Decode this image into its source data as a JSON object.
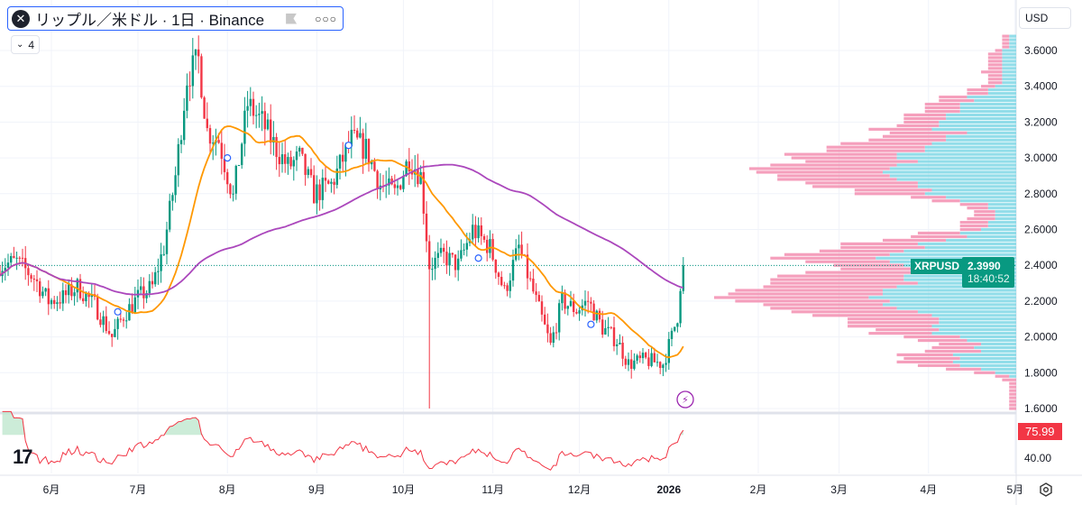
{
  "header": {
    "symbol_title": "リップル／米ドル · 1日 · Binance",
    "symbol_icon": "xrp-logo-icon",
    "more_icon": "ellipsis-icon",
    "indicators_collapse_count": "4"
  },
  "currency_selector": "USD",
  "price_axis": {
    "ticks": [
      "3.6000",
      "3.4000",
      "3.2000",
      "3.0000",
      "2.8000",
      "2.6000",
      "2.4000",
      "2.2000",
      "2.0000",
      "1.8000",
      "1.6000"
    ],
    "tick_values": [
      3.6,
      3.4,
      3.2,
      3.0,
      2.8,
      2.6,
      2.4,
      2.2,
      2.0,
      1.8,
      1.6
    ]
  },
  "last_price": {
    "symbol": "XRPUSD",
    "price": "2.3990",
    "countdown": "18:40:52",
    "value": 2.399
  },
  "rsi_pane": {
    "value_label": "75.99",
    "value": 75.99,
    "tick": "40.00",
    "tick_value": 40
  },
  "time_axis": [
    "6月",
    "7月",
    "8月",
    "9月",
    "10月",
    "11月",
    "12月",
    "2026",
    "2月",
    "3月",
    "4月",
    "5月"
  ],
  "colors": {
    "up": "#089981",
    "down": "#f23645",
    "ma_fast": "#ff9800",
    "ma_slow": "#ab47bc",
    "vp_up": "#80d8e6",
    "vp_down": "#f48fb1",
    "rsi": "#f23645",
    "accent": "#2962ff"
  },
  "chart_data": {
    "type": "candlestick",
    "symbol": "XRPUSD",
    "interval": "1D",
    "ylim": [
      1.6,
      3.66
    ],
    "close_path": [
      [
        "2025-05-14",
        2.4
      ],
      [
        "2025-05-20",
        2.42
      ],
      [
        "2025-05-26",
        2.33
      ],
      [
        "2025-05-31",
        2.2
      ],
      [
        "2025-06-05",
        2.22
      ],
      [
        "2025-06-10",
        2.28
      ],
      [
        "2025-06-16",
        2.18
      ],
      [
        "2025-06-22",
        2.0
      ],
      [
        "2025-06-26",
        2.12
      ],
      [
        "2025-07-01",
        2.22
      ],
      [
        "2025-07-06",
        2.28
      ],
      [
        "2025-07-10",
        2.5
      ],
      [
        "2025-07-14",
        2.9
      ],
      [
        "2025-07-18",
        3.45
      ],
      [
        "2025-07-22",
        3.55
      ],
      [
        "2025-07-25",
        3.15
      ],
      [
        "2025-07-29",
        3.1
      ],
      [
        "2025-08-03",
        2.78
      ],
      [
        "2025-08-08",
        3.3
      ],
      [
        "2025-08-13",
        3.2
      ],
      [
        "2025-08-18",
        3.05
      ],
      [
        "2025-08-22",
        2.95
      ],
      [
        "2025-08-26",
        3.0
      ],
      [
        "2025-08-31",
        2.8
      ],
      [
        "2025-09-06",
        2.85
      ],
      [
        "2025-09-13",
        3.1
      ],
      [
        "2025-09-18",
        3.05
      ],
      [
        "2025-09-23",
        2.85
      ],
      [
        "2025-09-28",
        2.8
      ],
      [
        "2025-10-03",
        3.0
      ],
      [
        "2025-10-07",
        2.9
      ],
      [
        "2025-10-10",
        2.4
      ],
      [
        "2025-10-15",
        2.45
      ],
      [
        "2025-10-20",
        2.4
      ],
      [
        "2025-10-25",
        2.6
      ],
      [
        "2025-10-31",
        2.5
      ],
      [
        "2025-11-05",
        2.25
      ],
      [
        "2025-11-10",
        2.5
      ],
      [
        "2025-11-15",
        2.25
      ],
      [
        "2025-11-21",
        1.95
      ],
      [
        "2025-11-25",
        2.2
      ],
      [
        "2025-11-30",
        2.15
      ],
      [
        "2025-12-04",
        2.2
      ],
      [
        "2025-12-09",
        2.05
      ],
      [
        "2025-12-14",
        1.98
      ],
      [
        "2025-12-18",
        1.85
      ],
      [
        "2025-12-24",
        1.87
      ],
      [
        "2025-12-30",
        1.85
      ],
      [
        "2026-01-02",
        2.0
      ],
      [
        "2026-01-04",
        2.12
      ],
      [
        "2026-01-05",
        2.3
      ],
      [
        "2026-01-06",
        2.399
      ]
    ],
    "flash_crash_low": {
      "date": "2025-10-10",
      "low": 1.6
    },
    "indicators": [
      "MA fast",
      "MA slow",
      "Volume profile",
      "RSI"
    ]
  }
}
